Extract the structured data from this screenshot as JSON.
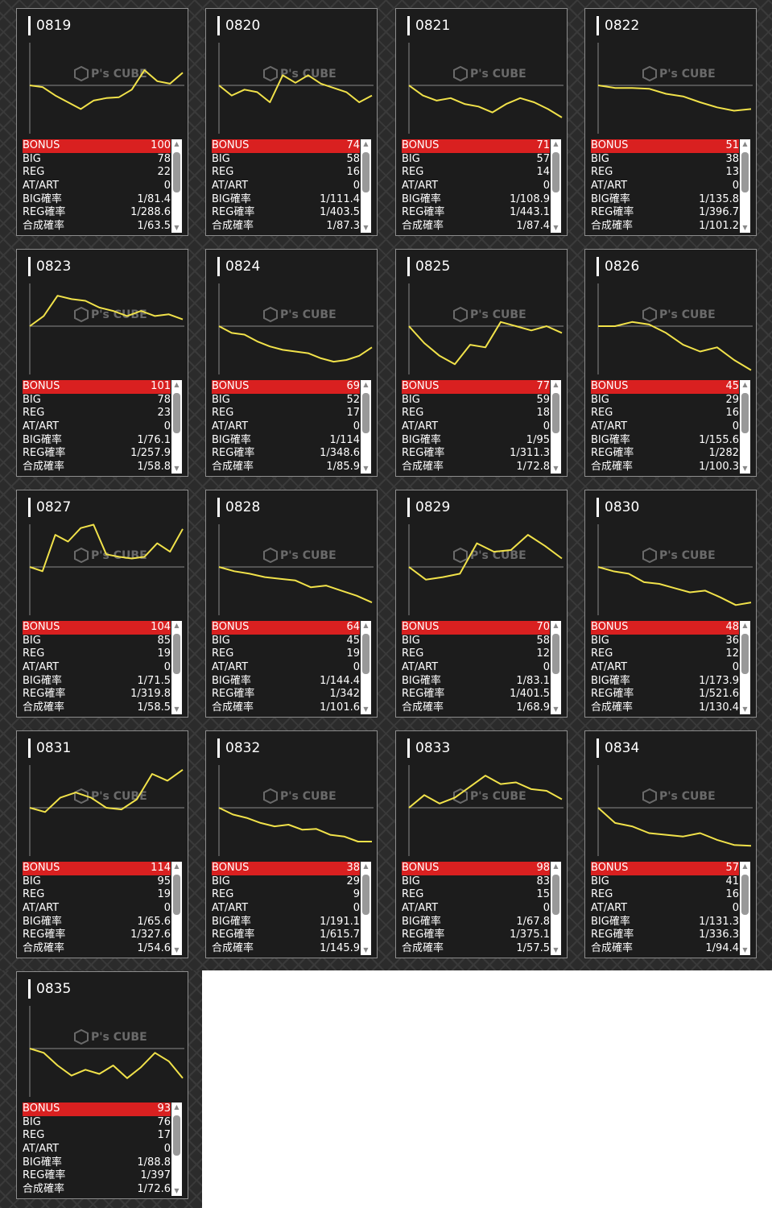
{
  "watermark": "P's CUBE",
  "colors": {
    "line": "#f1e24a",
    "highlight": "#d92020",
    "base": "#8a8a8a"
  },
  "labels": [
    "BONUS",
    "BIG",
    "REG",
    "AT/ART",
    "BIG確率",
    "REG確率",
    "合成確率"
  ],
  "machines": [
    {
      "id": "0819",
      "bonus": "100",
      "big": "78",
      "reg": "22",
      "at": "0",
      "big_rate": "1/81.4",
      "reg_rate": "1/288.6",
      "total_rate": "1/63.5",
      "trend": [
        0,
        -2,
        -12,
        -20,
        -28,
        -18,
        -15,
        -14,
        -5,
        18,
        5,
        2,
        15
      ]
    },
    {
      "id": "0820",
      "bonus": "74",
      "big": "58",
      "reg": "16",
      "at": "0",
      "big_rate": "1/111.4",
      "reg_rate": "1/403.5",
      "total_rate": "1/87.3",
      "trend": [
        0,
        -12,
        -5,
        -8,
        -20,
        12,
        3,
        12,
        2,
        -3,
        -8,
        -20,
        -12
      ]
    },
    {
      "id": "0821",
      "bonus": "71",
      "big": "57",
      "reg": "14",
      "at": "0",
      "big_rate": "1/108.9",
      "reg_rate": "1/443.1",
      "total_rate": "1/87.4",
      "trend": [
        0,
        -12,
        -18,
        -15,
        -22,
        -25,
        -32,
        -22,
        -15,
        -20,
        -28,
        -38
      ]
    },
    {
      "id": "0822",
      "bonus": "51",
      "big": "38",
      "reg": "13",
      "at": "0",
      "big_rate": "1/135.8",
      "reg_rate": "1/396.7",
      "total_rate": "1/101.2",
      "trend": [
        0,
        -3,
        -3,
        -4,
        -10,
        -13,
        -20,
        -26,
        -30,
        -28
      ]
    },
    {
      "id": "0823",
      "bonus": "101",
      "big": "78",
      "reg": "23",
      "at": "0",
      "big_rate": "1/76.1",
      "reg_rate": "1/257.9",
      "total_rate": "1/58.8",
      "trend": [
        0,
        12,
        36,
        32,
        30,
        22,
        18,
        12,
        18,
        12,
        14,
        8
      ]
    },
    {
      "id": "0824",
      "bonus": "69",
      "big": "52",
      "reg": "17",
      "at": "0",
      "big_rate": "1/114",
      "reg_rate": "1/348.6",
      "total_rate": "1/85.9",
      "trend": [
        0,
        -8,
        -10,
        -18,
        -24,
        -28,
        -30,
        -32,
        -38,
        -42,
        -40,
        -35,
        -25
      ]
    },
    {
      "id": "0825",
      "bonus": "77",
      "big": "59",
      "reg": "18",
      "at": "0",
      "big_rate": "1/95",
      "reg_rate": "1/311.3",
      "total_rate": "1/72.8",
      "trend": [
        0,
        -20,
        -35,
        -45,
        -22,
        -25,
        5,
        0,
        -5,
        0,
        -8
      ]
    },
    {
      "id": "0826",
      "bonus": "45",
      "big": "29",
      "reg": "16",
      "at": "0",
      "big_rate": "1/155.6",
      "reg_rate": "1/282",
      "total_rate": "1/100.3",
      "trend": [
        0,
        0,
        5,
        2,
        -8,
        -22,
        -30,
        -25,
        -40,
        -52
      ]
    },
    {
      "id": "0827",
      "bonus": "104",
      "big": "85",
      "reg": "19",
      "at": "0",
      "big_rate": "1/71.5",
      "reg_rate": "1/319.8",
      "total_rate": "1/58.5",
      "trend": [
        0,
        -5,
        38,
        30,
        46,
        50,
        15,
        12,
        10,
        12,
        28,
        18,
        45
      ]
    },
    {
      "id": "0828",
      "bonus": "64",
      "big": "45",
      "reg": "19",
      "at": "0",
      "big_rate": "1/144.4",
      "reg_rate": "1/342",
      "total_rate": "1/101.6",
      "trend": [
        0,
        -5,
        -8,
        -12,
        -14,
        -16,
        -24,
        -22,
        -28,
        -34,
        -42
      ]
    },
    {
      "id": "0829",
      "bonus": "70",
      "big": "58",
      "reg": "12",
      "at": "0",
      "big_rate": "1/83.1",
      "reg_rate": "1/401.5",
      "total_rate": "1/68.9",
      "trend": [
        0,
        -15,
        -12,
        -8,
        28,
        18,
        20,
        38,
        25,
        10
      ]
    },
    {
      "id": "0830",
      "bonus": "48",
      "big": "36",
      "reg": "12",
      "at": "0",
      "big_rate": "1/173.9",
      "reg_rate": "1/521.6",
      "total_rate": "1/130.4",
      "trend": [
        0,
        -5,
        -8,
        -18,
        -20,
        -25,
        -30,
        -28,
        -36,
        -45,
        -42
      ]
    },
    {
      "id": "0831",
      "bonus": "114",
      "big": "95",
      "reg": "19",
      "at": "0",
      "big_rate": "1/65.6",
      "reg_rate": "1/327.6",
      "total_rate": "1/54.6",
      "trend": [
        0,
        -5,
        12,
        18,
        12,
        0,
        -2,
        10,
        40,
        32,
        45
      ]
    },
    {
      "id": "0832",
      "bonus": "38",
      "big": "29",
      "reg": "9",
      "at": "0",
      "big_rate": "1/191.1",
      "reg_rate": "1/615.7",
      "total_rate": "1/145.9",
      "trend": [
        0,
        -8,
        -12,
        -18,
        -22,
        -20,
        -26,
        -25,
        -32,
        -34,
        -40,
        -40
      ]
    },
    {
      "id": "0833",
      "bonus": "98",
      "big": "83",
      "reg": "15",
      "at": "0",
      "big_rate": "1/67.8",
      "reg_rate": "1/375.1",
      "total_rate": "1/57.5",
      "trend": [
        0,
        15,
        5,
        12,
        25,
        38,
        28,
        30,
        22,
        20,
        10
      ]
    },
    {
      "id": "0834",
      "bonus": "57",
      "big": "41",
      "reg": "16",
      "at": "0",
      "big_rate": "1/131.3",
      "reg_rate": "1/336.3",
      "total_rate": "1/94.4",
      "trend": [
        0,
        -18,
        -22,
        -30,
        -32,
        -34,
        -30,
        -38,
        -44,
        -45
      ]
    },
    {
      "id": "0835",
      "bonus": "93",
      "big": "76",
      "reg": "17",
      "at": "0",
      "big_rate": "1/88.8",
      "reg_rate": "1/397",
      "total_rate": "1/72.6",
      "trend": [
        0,
        -5,
        -20,
        -32,
        -25,
        -30,
        -20,
        -35,
        -22,
        -5,
        -15,
        -35
      ]
    }
  ]
}
